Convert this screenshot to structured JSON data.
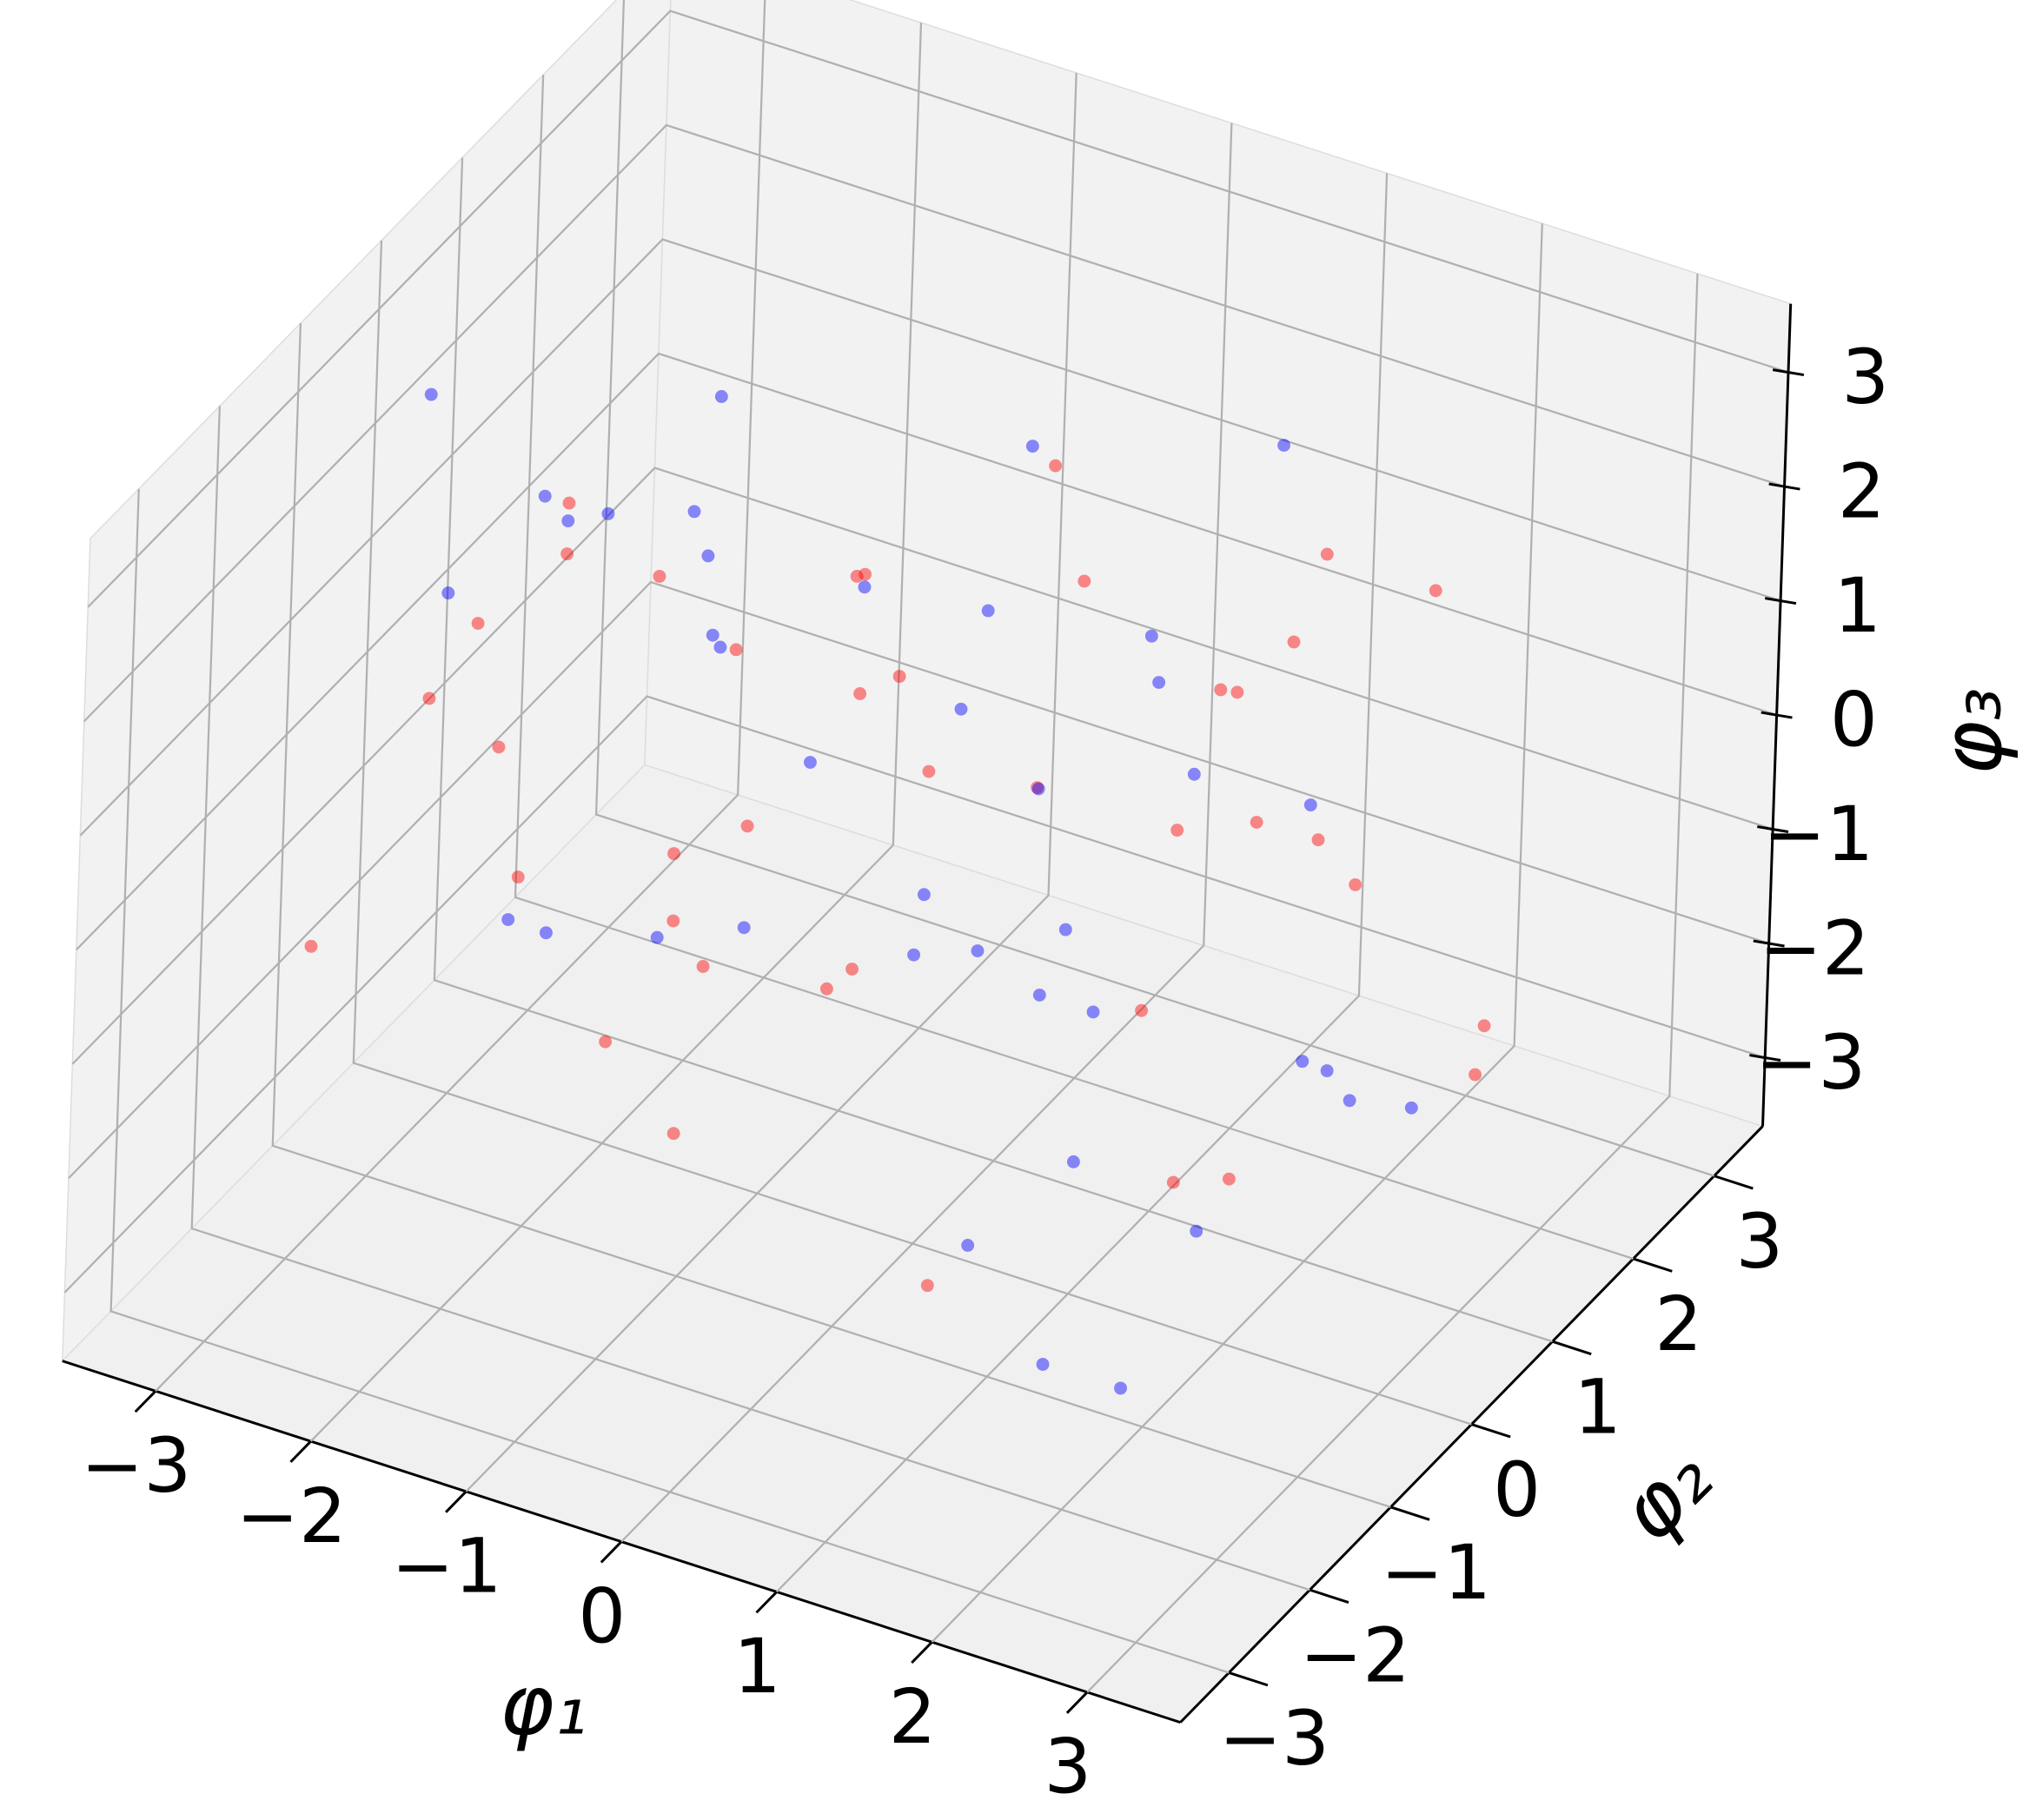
{
  "chart_data": {
    "type": "scatter3d",
    "x_label": "φ₁",
    "y_label": "φ₂",
    "z_label": "φ₃",
    "xlim": [
      -3.6,
      3.6
    ],
    "ylim": [
      -3.6,
      3.6
    ],
    "zlim": [
      -3.6,
      3.6
    ],
    "xticks": [
      {
        "value": -3,
        "label": "−3"
      },
      {
        "value": -2,
        "label": "−2"
      },
      {
        "value": -1,
        "label": "−1"
      },
      0,
      1,
      2,
      3
    ],
    "yticks": [
      {
        "value": -3,
        "label": "−3"
      },
      {
        "value": -2,
        "label": "−2"
      },
      {
        "value": -1,
        "label": "−1"
      },
      0,
      1,
      2,
      3
    ],
    "zticks": [
      {
        "value": -3,
        "label": "−3"
      },
      {
        "value": -2,
        "label": "−2"
      },
      {
        "value": -1,
        "label": "−1"
      },
      0,
      1,
      2,
      3
    ],
    "grid": true,
    "series": [
      {
        "color": "#ff0000",
        "x": [
          0.3,
          -1.2,
          2.1,
          -0.5,
          1.4,
          -2.3,
          0.8,
          -1.7,
          2.8,
          -0.2,
          1.1,
          -2.9,
          0.5,
          -0.9,
          1.9,
          -1.5,
          2.4,
          -0.7,
          0.1,
          -2.1,
          1.6,
          -3.1,
          0.9,
          -0.3,
          2.6,
          -1.1,
          1.3,
          -2.6,
          0.6,
          -1.9,
          3.0,
          -0.4,
          1.8,
          -2.4,
          0.2,
          -1.3,
          2.2,
          -0.8,
          1.0,
          -3.3
        ],
        "y": [
          -0.6,
          1.5,
          0.4,
          -2.2,
          2.7,
          -0.1,
          -1.4,
          0.9,
          -2.8,
          1.8,
          -0.3,
          2.3,
          -1.9,
          0.6,
          1.2,
          -2.5,
          -0.8,
          2.9,
          -1.1,
          0.2,
          3.2,
          -1.6,
          1.4,
          -0.4,
          2.0,
          -3.0,
          0.7,
          -1.2,
          2.5,
          -0.9,
          1.1,
          -2.0,
          0.3,
          1.6,
          -2.7,
          2.2,
          -0.2,
          -1.5,
          3.0,
          0.8
        ],
        "z": [
          1.1,
          -0.4,
          2.3,
          0.6,
          -1.8,
          1.5,
          -2.6,
          0.2,
          1.7,
          -1.0,
          2.9,
          -0.7,
          0.4,
          -2.2,
          -0.1,
          1.9,
          -1.4,
          0.8,
          3.1,
          -2.9,
          0.5,
          -1.2,
          -0.6,
          2.4,
          -2.0,
          1.3,
          -3.0,
          0.9,
          -0.3,
          2.7,
          -1.6,
          0.1,
          1.8,
          -2.4,
          2.1,
          -0.8,
          1.2,
          -1.9,
          0.7,
          -0.2
        ]
      },
      {
        "color": "#0000ff",
        "x": [
          -0.4,
          1.7,
          -2.0,
          0.9,
          -1.3,
          2.5,
          -0.6,
          1.2,
          -2.7,
          0.3,
          -1.8,
          3.1,
          -0.1,
          1.5,
          -2.4,
          0.7,
          -1.0,
          2.2,
          -3.0,
          0.5,
          -1.5,
          2.9,
          -0.8,
          1.9,
          -2.2,
          0.0,
          -1.6,
          2.7,
          -0.5,
          1.3,
          -3.2,
          0.8,
          -2.0,
          1.0,
          -0.9,
          2.4,
          -1.4,
          0.4,
          -2.8,
          3.3
        ],
        "y": [
          0.8,
          -1.9,
          1.3,
          2.6,
          -0.5,
          -2.3,
          1.9,
          -0.2,
          0.6,
          -2.9,
          2.1,
          -1.0,
          3.0,
          -1.6,
          0.1,
          -0.7,
          2.4,
          -2.6,
          1.0,
          -0.3,
          -1.2,
          0.5,
          2.8,
          -2.1,
          1.6,
          -0.9,
          0.3,
          -1.8,
          -2.4,
          2.3,
          -0.1,
          3.3,
          -1.3,
          0.9,
          1.7,
          -2.8,
          0.0,
          2.6,
          -0.6,
          -1.1
        ],
        "z": [
          -1.3,
          0.7,
          -0.2,
          1.9,
          2.6,
          -2.1,
          0.3,
          -0.9,
          -2.5,
          1.4,
          -1.7,
          0.0,
          -0.5,
          2.2,
          1.6,
          -2.8,
          -1.1,
          2.0,
          0.9,
          -0.6,
          3.0,
          -1.5,
          1.0,
          -2.3,
          -0.4,
          2.8,
          1.5,
          -1.0,
          0.6,
          -3.1,
          2.5,
          -1.8,
          -0.7,
          1.1,
          -2.7,
          0.2,
          3.2,
          -1.2,
          1.3,
          -0.1
        ]
      }
    ]
  }
}
